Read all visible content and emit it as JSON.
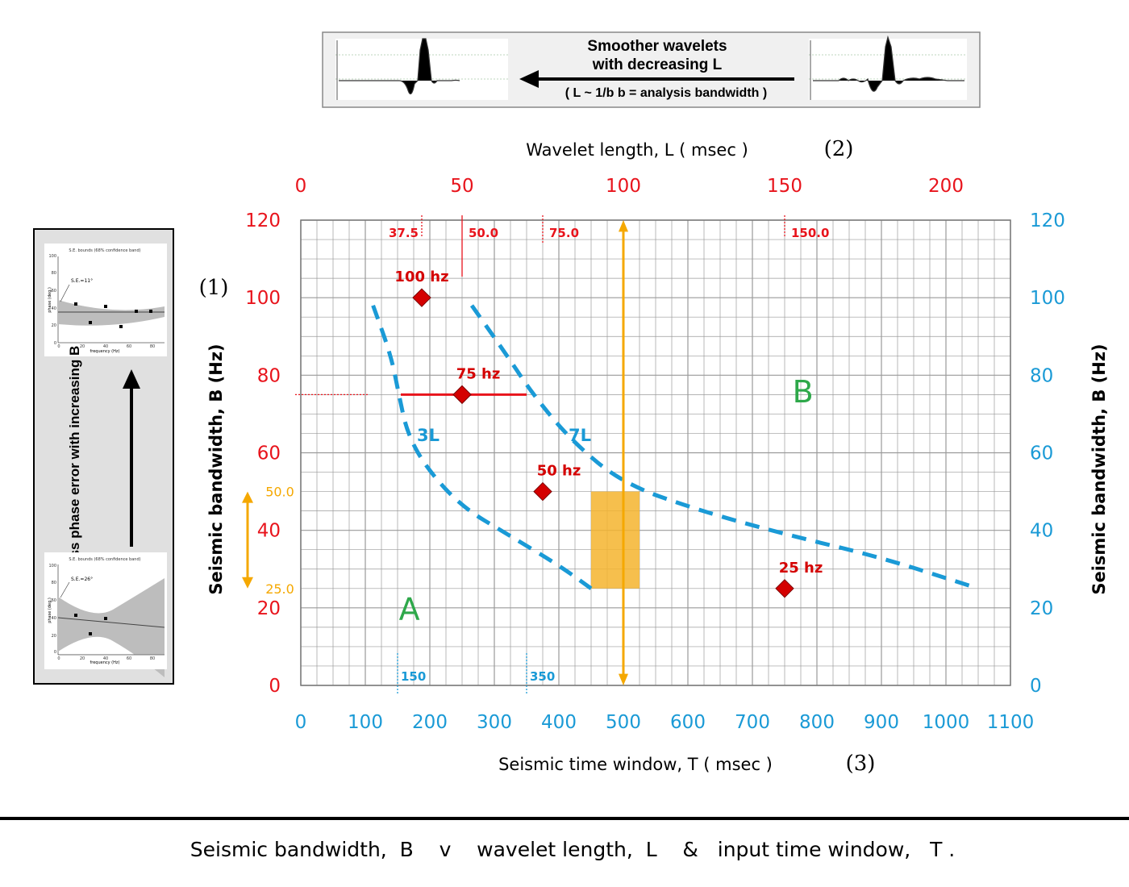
{
  "banner": {
    "line1": "Smoother wavelets",
    "line2": "with decreasing L",
    "line3": "( L ~ 1/b  b = analysis bandwidth )"
  },
  "top_axis": {
    "title": "Wavelet length,  L ( msec )",
    "number": "(2)",
    "ticks": [
      "0",
      "50",
      "100",
      "150",
      "200"
    ],
    "markers": [
      "37.5",
      "50.0",
      "75.0",
      "150.0"
    ]
  },
  "left_axis": {
    "title": "Seismic  bandwidth,  B  (Hz)",
    "number": "(1)",
    "ticks": [
      "0",
      "20",
      "40",
      "60",
      "80",
      "100",
      "120"
    ],
    "range_labels": [
      "50.0",
      "25.0"
    ]
  },
  "right_axis": {
    "title": "Seismic  bandwidth,  B  (Hz)",
    "ticks": [
      "0",
      "20",
      "40",
      "60",
      "80",
      "100",
      "120"
    ]
  },
  "bottom_axis": {
    "title": "Seismic time window,  T ( msec )",
    "number": "(3)",
    "ticks": [
      "0",
      "100",
      "200",
      "300",
      "400",
      "500",
      "600",
      "700",
      "800",
      "900",
      "1000",
      "1100"
    ],
    "markers": [
      "150",
      "350"
    ]
  },
  "annotations": {
    "region_a": "A",
    "region_b": "B",
    "curve_3l": "3L",
    "curve_7l": "7L"
  },
  "inset": {
    "caption": "Less phase error with increasing B",
    "top_plot_title": "S.E. bounds (68% confidence band)",
    "top_plot_se": "S.E.=11°",
    "bottom_plot_title": "S.E. bounds (68% confidence band)",
    "bottom_plot_se": "S.E.=26°",
    "ylabel": "phase (deg.)",
    "xlabel": "frequency (Hz)",
    "yticks": [
      "0",
      "20",
      "40",
      "60",
      "80",
      "100"
    ],
    "xticks": [
      "0",
      "20",
      "40",
      "60",
      "80"
    ]
  },
  "caption": "Seismic bandwidth,  B    v    wavelet length,  L    &   input time window,   T .",
  "colors": {
    "red": "#e8141c",
    "blue": "#1a9ad6",
    "orange": "#f5a800",
    "green": "#2ea84a",
    "marker": "#d40000",
    "grid": "#9a9a9a"
  },
  "chart_data": {
    "type": "scatter",
    "x_axis": {
      "label": "Seismic time window,  T ( msec )",
      "range": [
        0,
        1100
      ]
    },
    "x2_axis": {
      "label": "Wavelet length,  L ( msec )",
      "range": [
        0,
        220
      ]
    },
    "y_axis": {
      "label": "Seismic  bandwidth,  B  (Hz)",
      "range": [
        0,
        120
      ]
    },
    "points": [
      {
        "label": "100 hz",
        "T": 187.5,
        "B": 100
      },
      {
        "label": "75 hz",
        "T": 250,
        "B": 75
      },
      {
        "label": "50 hz",
        "T": 375,
        "B": 50
      },
      {
        "label": "25 hz",
        "T": 750,
        "B": 25
      }
    ],
    "curves": [
      {
        "name": "3L",
        "points": [
          [
            112,
            98
          ],
          [
            140,
            85
          ],
          [
            152,
            75
          ],
          [
            165,
            65
          ],
          [
            195,
            56
          ],
          [
            250,
            46
          ],
          [
            320,
            39
          ],
          [
            400,
            31
          ],
          [
            450,
            25
          ]
        ]
      },
      {
        "name": "7L",
        "points": [
          [
            265,
            98
          ],
          [
            320,
            85
          ],
          [
            360,
            75
          ],
          [
            420,
            63
          ],
          [
            500,
            52
          ],
          [
            620,
            45
          ],
          [
            750,
            39
          ],
          [
            900,
            33
          ],
          [
            1050,
            25
          ]
        ]
      }
    ],
    "segments": [
      {
        "name": "75 hz range",
        "T": [
          155,
          350
        ],
        "B": 75
      }
    ],
    "shaded_box": {
      "T": [
        450,
        525
      ],
      "B": [
        25,
        50
      ]
    },
    "vertical_range_T": 500,
    "bandwidth_range": [
      25,
      50
    ]
  }
}
